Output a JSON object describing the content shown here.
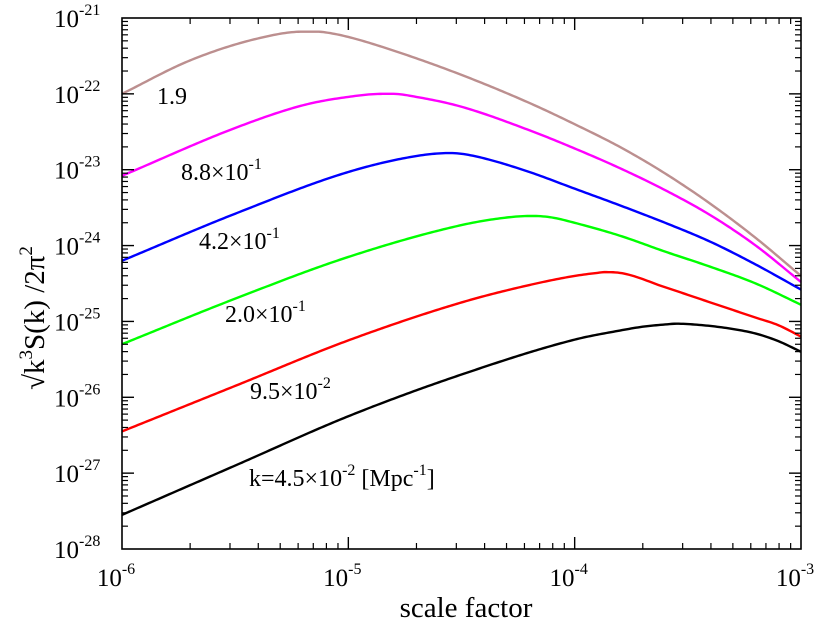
{
  "chart_data": {
    "type": "line",
    "title": "",
    "xlabel": "scale factor",
    "ylabel": {
      "root": "√",
      "base": "k",
      "exp": "3",
      "mid": "S(k) /2π",
      "exp2": "2"
    },
    "xscale": "log",
    "yscale": "log",
    "xlim_exp": [
      -6,
      -3
    ],
    "ylim_exp": [
      -28,
      -21
    ],
    "x_ticks": [
      {
        "base": "10",
        "exp": "-6"
      },
      {
        "base": "10",
        "exp": "-5"
      },
      {
        "base": "10",
        "exp": "-4"
      },
      {
        "base": "10",
        "exp": "-3"
      }
    ],
    "y_ticks": [
      {
        "base": "10",
        "exp": "-28"
      },
      {
        "base": "10",
        "exp": "-27"
      },
      {
        "base": "10",
        "exp": "-26"
      },
      {
        "base": "10",
        "exp": "-25"
      },
      {
        "base": "10",
        "exp": "-24"
      },
      {
        "base": "10",
        "exp": "-23"
      },
      {
        "base": "10",
        "exp": "-22"
      },
      {
        "base": "10",
        "exp": "-21"
      }
    ],
    "grid": false,
    "legend": "inline labels",
    "series": [
      {
        "name": "k=4.5×10^-2 [Mpc^-1]",
        "color": "#000000",
        "log_a": [
          -6,
          -5.5,
          -5,
          -4.5,
          -4,
          -3.8,
          -3.7,
          -3.6,
          -3.55,
          -3.5,
          -3.4,
          -3.3,
          -3.2,
          -3.1,
          -3
        ],
        "log_y": [
          -27.55,
          -26.9,
          -26.25,
          -25.7,
          -25.24,
          -25.12,
          -25.07,
          -25.04,
          -25.03,
          -25.035,
          -25.06,
          -25.1,
          -25.16,
          -25.26,
          -25.4
        ]
      },
      {
        "name": "9.5×10^-2",
        "color": "#ff0000",
        "log_a": [
          -6,
          -5.5,
          -5,
          -4.5,
          -4.2,
          -4,
          -3.9,
          -3.87,
          -3.8,
          -3.6,
          -3.4,
          -3.2,
          -3.1,
          -3
        ],
        "log_y": [
          -26.45,
          -25.85,
          -25.25,
          -24.75,
          -24.52,
          -24.4,
          -24.36,
          -24.35,
          -24.36,
          -24.55,
          -24.75,
          -24.95,
          -25.05,
          -25.2
        ]
      },
      {
        "name": "2.0×10^-1",
        "color": "#00ff00",
        "log_a": [
          -6,
          -5.5,
          -5,
          -4.5,
          -4.3,
          -4.2,
          -4.18,
          -4.1,
          -4,
          -3.8,
          -3.6,
          -3.4,
          -3.2,
          -3
        ],
        "log_y": [
          -25.3,
          -24.7,
          -24.15,
          -23.73,
          -23.63,
          -23.61,
          -23.61,
          -23.63,
          -23.7,
          -23.87,
          -24.08,
          -24.28,
          -24.5,
          -24.78
        ]
      },
      {
        "name": "4.2×10^-1",
        "color": "#0000ff",
        "log_a": [
          -6,
          -5.5,
          -5,
          -4.7,
          -4.55,
          -4.5,
          -4.4,
          -4.2,
          -4,
          -3.8,
          -3.6,
          -3.4,
          -3.2,
          -3
        ],
        "log_y": [
          -24.2,
          -23.58,
          -23.03,
          -22.82,
          -22.78,
          -22.79,
          -22.85,
          -23.03,
          -23.25,
          -23.47,
          -23.7,
          -23.95,
          -24.25,
          -24.58
        ]
      },
      {
        "name": "8.8×10^-1",
        "color": "#ff00ff",
        "log_a": [
          -6,
          -5.5,
          -5.2,
          -5,
          -4.85,
          -4.8,
          -4.7,
          -4.5,
          -4.2,
          -4,
          -3.8,
          -3.6,
          -3.4,
          -3.2,
          -3
        ],
        "log_y": [
          -23.08,
          -22.45,
          -22.15,
          -22.04,
          -22.0,
          -22.0,
          -22.04,
          -22.17,
          -22.48,
          -22.72,
          -22.98,
          -23.27,
          -23.6,
          -24.0,
          -24.48
        ]
      },
      {
        "name": "1.9",
        "color": "#bc8f8f",
        "log_a": [
          -6,
          -5.7,
          -5.4,
          -5.2,
          -5.14,
          -5.1,
          -5,
          -4.8,
          -4.5,
          -4.2,
          -4,
          -3.8,
          -3.6,
          -3.4,
          -3.2,
          -3
        ],
        "log_y": [
          -22.0,
          -21.56,
          -21.27,
          -21.18,
          -21.18,
          -21.19,
          -21.25,
          -21.43,
          -21.75,
          -22.12,
          -22.4,
          -22.7,
          -23.05,
          -23.45,
          -23.9,
          -24.4
        ]
      }
    ],
    "annotations": [
      {
        "text": "1.9",
        "exp": "",
        "suffix": "",
        "suffix_exp": "",
        "suffix_end": ""
      },
      {
        "text": "8.8×10",
        "exp": "-1",
        "suffix": "",
        "suffix_exp": "",
        "suffix_end": ""
      },
      {
        "text": "4.2×10",
        "exp": "-1",
        "suffix": "",
        "suffix_exp": "",
        "suffix_end": ""
      },
      {
        "text": "2.0×10",
        "exp": "-1",
        "suffix": "",
        "suffix_exp": "",
        "suffix_end": ""
      },
      {
        "text": "9.5×10",
        "exp": "-2",
        "suffix": "",
        "suffix_exp": "",
        "suffix_end": ""
      },
      {
        "text": "k=4.5×10",
        "exp": "-2",
        "suffix": "  [Mpc",
        "suffix_exp": "-1",
        "suffix_end": "]"
      }
    ]
  }
}
